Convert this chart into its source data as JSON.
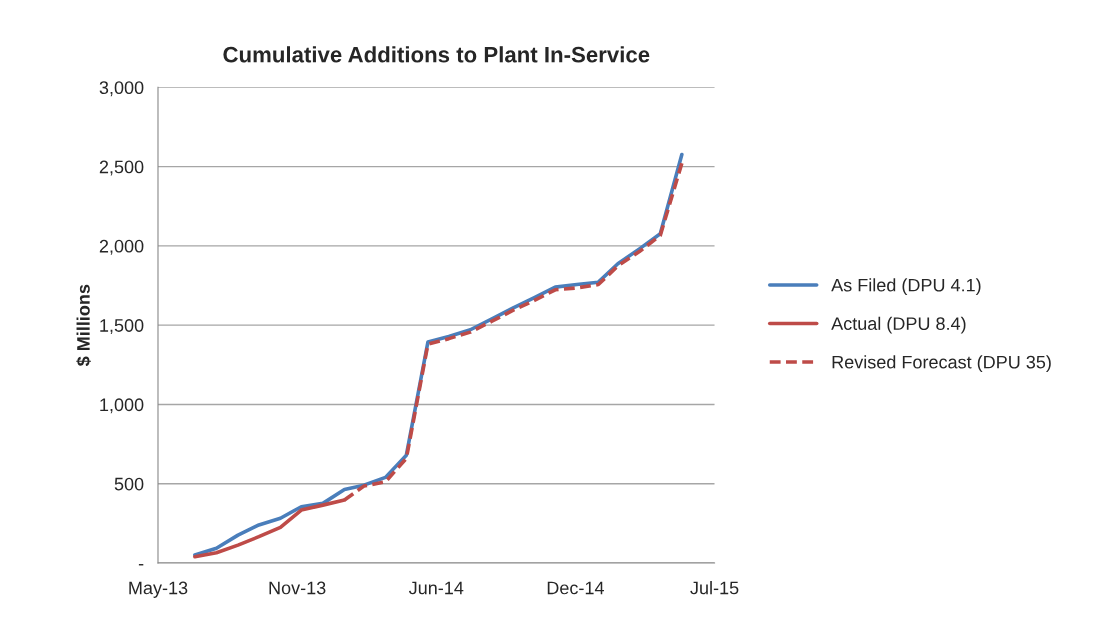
{
  "chart_data": {
    "type": "line",
    "title": "Cumulative Additions to Plant In-Service",
    "ylabel": "$ Millions",
    "x": [
      "2013-06-30",
      "2013-07-31",
      "2013-08-31",
      "2013-09-30",
      "2013-10-31",
      "2013-11-30",
      "2013-12-31",
      "2014-01-31",
      "2014-02-28",
      "2014-03-31",
      "2014-04-30",
      "2014-05-31",
      "2014-06-30",
      "2014-07-31",
      "2014-08-31",
      "2014-09-30",
      "2014-10-31",
      "2014-11-30",
      "2014-12-31",
      "2015-01-31",
      "2015-02-28",
      "2015-03-31",
      "2015-04-30",
      "2015-05-31"
    ],
    "series": [
      {
        "name": "As Filed (DPU 4.1)",
        "color": "#4a7ebb",
        "line_style": "solid",
        "values": [
          50,
          93,
          176,
          240,
          282,
          355,
          376,
          464,
          491,
          540,
          680,
          1394,
          1429,
          1471,
          1540,
          1607,
          1673,
          1740,
          1756,
          1771,
          1887,
          1981,
          2076,
          2576
        ]
      },
      {
        "name": "Actual (DPU 8.4)",
        "color": "#be4b48",
        "line_style": "solid",
        "values": [
          40,
          65,
          113,
          166,
          225,
          334,
          365,
          397,
          null,
          null,
          null,
          null,
          null,
          null,
          null,
          null,
          null,
          null,
          null,
          null,
          null,
          null,
          null,
          null
        ]
      },
      {
        "name": "Revised Forecast (DPU 35)",
        "color": "#be4b48",
        "line_style": "dashed",
        "values": [
          null,
          null,
          null,
          null,
          null,
          null,
          null,
          397,
          485,
          512,
          660,
          1380,
          1415,
          1456,
          1525,
          1593,
          1656,
          1723,
          1735,
          1756,
          1874,
          1964,
          2066,
          2521
        ]
      }
    ],
    "xlim": [
      "2013-05-08",
      "2015-07-17"
    ],
    "xticks": [
      {
        "value": "2013-05-08",
        "label": "May-13"
      },
      {
        "value": "2013-11-24",
        "label": "Nov-13"
      },
      {
        "value": "2014-06-12",
        "label": "Jun-14"
      },
      {
        "value": "2014-12-29",
        "label": "Dec-14"
      },
      {
        "value": "2015-07-17",
        "label": "Jul-15"
      }
    ],
    "ylim": [
      0,
      3000
    ],
    "yticks": [
      {
        "value": 0,
        "label": "-"
      },
      {
        "value": 500,
        "label": "500"
      },
      {
        "value": 1000,
        "label": "1,000"
      },
      {
        "value": 1500,
        "label": "1,500"
      },
      {
        "value": 2000,
        "label": "2,000"
      },
      {
        "value": 2500,
        "label": "2,500"
      },
      {
        "value": 3000,
        "label": "3,000"
      }
    ],
    "grid": "y",
    "legend": "right",
    "marker": "none"
  }
}
